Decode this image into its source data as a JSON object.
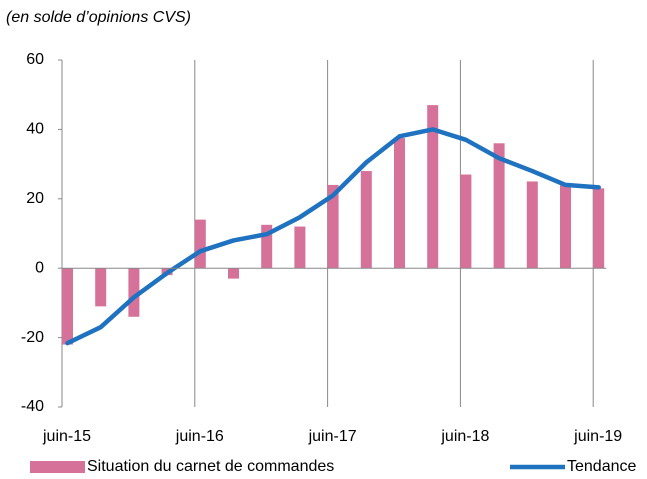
{
  "chart_data": {
    "type": "bar-line",
    "subtitle": "(en solde d’opinions CVS)",
    "categories": [
      "juin-15",
      null,
      null,
      null,
      "juin-16",
      null,
      null,
      null,
      "juin-17",
      null,
      null,
      null,
      "juin-18",
      null,
      null,
      null,
      "juin-19"
    ],
    "series": [
      {
        "name": "Situation du carnet de commandes",
        "type": "bar",
        "color": "#d6729a",
        "values": [
          -22,
          -11,
          -14,
          -2,
          14,
          -3,
          12.5,
          12,
          24,
          28,
          37.5,
          47,
          27,
          36,
          25,
          24,
          23
        ]
      },
      {
        "name": "Tendance",
        "type": "line",
        "color": "#1f72c0",
        "values": [
          -21.6,
          -17,
          -8.4,
          -1.4,
          4.9,
          8,
          9.8,
          14.7,
          21,
          30.5,
          38,
          40,
          37,
          31.7,
          28,
          24,
          23.3
        ]
      }
    ],
    "ylim": [
      -40,
      60
    ],
    "yticks": [
      -40,
      -20,
      0,
      20,
      40,
      60
    ],
    "grid": "x"
  }
}
